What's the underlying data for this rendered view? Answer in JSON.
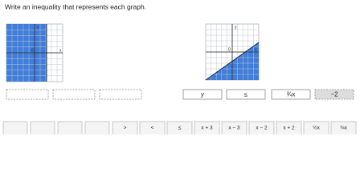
{
  "instruction": "Write an inequality that represents each graph.",
  "graph1": {
    "y_label": "y",
    "x_label": "x",
    "origin": "0"
  },
  "graph2": {
    "y_label": "y",
    "x_label": "x",
    "origin": "0"
  },
  "answer2": [
    "y",
    "≤",
    "¾x",
    "−2"
  ],
  "tiles": [
    ">",
    "<",
    "≤",
    "x + 3",
    "x − 3",
    "x − 2",
    "x + 2",
    "½x",
    "¾x"
  ]
}
